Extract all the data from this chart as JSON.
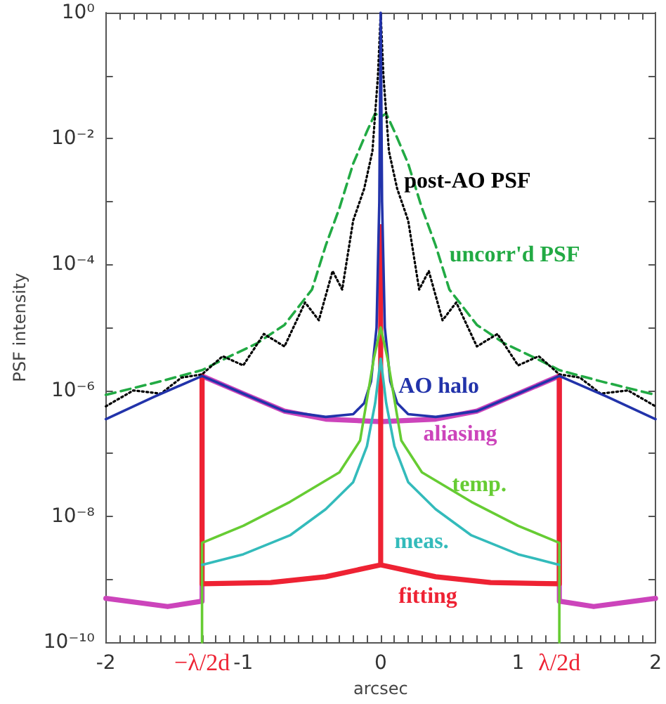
{
  "chart_data": {
    "type": "line",
    "xlabel": "arcsec",
    "ylabel": "PSF intensity",
    "log": "y",
    "grid": false,
    "legend": false,
    "marker": "none",
    "xlim": [
      -2,
      2
    ],
    "ylim": [
      1e-10,
      1
    ],
    "xticks": [
      -2,
      {
        "value": -1.9,
        "label": null
      },
      {
        "value": -1.8,
        "label": null
      },
      {
        "value": -1.7,
        "label": null
      },
      {
        "value": -1.6,
        "label": null
      },
      {
        "value": -1.5,
        "label": null
      },
      {
        "value": -1.4,
        "label": null
      },
      {
        "value": -1.3,
        "label": null
      },
      {
        "value": -1.2,
        "label": null
      },
      {
        "value": -1.1,
        "label": null
      },
      -1,
      {
        "value": -0.9,
        "label": null
      },
      {
        "value": -0.8,
        "label": null
      },
      {
        "value": -0.7,
        "label": null
      },
      {
        "value": -0.6,
        "label": null
      },
      {
        "value": -0.5,
        "label": null
      },
      {
        "value": -0.4,
        "label": null
      },
      {
        "value": -0.3,
        "label": null
      },
      {
        "value": -0.2,
        "label": null
      },
      {
        "value": -0.1,
        "label": null
      },
      0,
      {
        "value": 0.1,
        "label": null
      },
      {
        "value": 0.2,
        "label": null
      },
      {
        "value": 0.3,
        "label": null
      },
      {
        "value": 0.4,
        "label": null
      },
      {
        "value": 0.5,
        "label": null
      },
      {
        "value": 0.6,
        "label": null
      },
      {
        "value": 0.7,
        "label": null
      },
      {
        "value": 0.8,
        "label": null
      },
      {
        "value": 0.9,
        "label": null
      },
      1,
      {
        "value": 1.1,
        "label": null
      },
      {
        "value": 1.2,
        "label": null
      },
      {
        "value": 1.3,
        "label": null
      },
      {
        "value": 1.4,
        "label": null
      },
      {
        "value": 1.5,
        "label": null
      },
      {
        "value": 1.6,
        "label": null
      },
      {
        "value": 1.7,
        "label": null
      },
      {
        "value": 1.8,
        "label": null
      },
      {
        "value": 1.9,
        "label": null
      },
      2
    ],
    "yticks": [
      {
        "value": 1e-10,
        "label": "10⁻¹⁰"
      },
      {
        "value": 1e-09,
        "label": null
      },
      {
        "value": 1e-08,
        "label": "10⁻⁸"
      },
      {
        "value": 1e-07,
        "label": null
      },
      {
        "value": 1e-06,
        "label": "10⁻⁶"
      },
      {
        "value": 1e-05,
        "label": null
      },
      {
        "value": 0.0001,
        "label": "10⁻⁴"
      },
      {
        "value": 0.001,
        "label": null
      },
      {
        "value": 0.01,
        "label": "10⁻²"
      },
      {
        "value": 0.1,
        "label": null
      },
      {
        "value": 1,
        "label": "10⁰"
      }
    ],
    "series": [
      {
        "name": "uncorr'd PSF",
        "color": "#22aa44",
        "line_style": "dashed",
        "x": [
          -2,
          -1.6,
          -1.3,
          -1.16,
          -0.9,
          -0.7,
          -0.5,
          -0.4,
          -0.3,
          -0.2,
          -0.1,
          -0.04,
          0,
          0.04,
          0.1,
          0.2,
          0.3,
          0.4,
          0.5,
          0.7,
          0.9,
          1.16,
          1.3,
          1.6,
          2
        ],
        "values": [
          8.5e-07,
          1.4e-06,
          2.1e-06,
          3e-06,
          5.6e-06,
          1.1e-05,
          4e-05,
          0.0002,
          0.00079,
          0.004,
          0.013,
          0.025,
          0.022,
          0.025,
          0.013,
          0.004,
          0.00079,
          0.0002,
          4e-05,
          1.1e-05,
          5.6e-06,
          3e-06,
          2.1e-06,
          1.4e-06,
          8.5e-07
        ]
      },
      {
        "name": "post-AO PSF",
        "color": "#000000",
        "line_style": "dotted",
        "x": [
          -2,
          -1.8,
          -1.6,
          -1.45,
          -1.3,
          -1.15,
          -1,
          -0.85,
          -0.7,
          -0.55,
          -0.45,
          -0.35,
          -0.28,
          -0.2,
          -0.12,
          -0.06,
          -0.02,
          0,
          0.02,
          0.06,
          0.12,
          0.2,
          0.28,
          0.35,
          0.45,
          0.55,
          0.7,
          0.85,
          1,
          1.15,
          1.3,
          1.45,
          1.6,
          1.8,
          2
        ],
        "values": [
          5.6e-07,
          1e-06,
          8.9e-07,
          1.6e-06,
          1.8e-06,
          3.5e-06,
          2.5e-06,
          7.9e-06,
          5e-06,
          2.5e-05,
          1.3e-05,
          7.9e-05,
          4e-05,
          0.0005,
          0.0016,
          0.0063,
          0.1,
          1,
          0.1,
          0.0063,
          0.0016,
          0.0005,
          4e-05,
          7.9e-05,
          1.3e-05,
          2.5e-05,
          5e-06,
          7.9e-06,
          2.5e-06,
          3.5e-06,
          1.8e-06,
          1.6e-06,
          8.9e-07,
          1e-06,
          5.6e-07
        ]
      },
      {
        "name": "AO halo",
        "color": "#2233aa",
        "line_style": "solid",
        "x": [
          -2,
          -1.65,
          -1.3,
          -1,
          -0.7,
          -0.4,
          -0.2,
          -0.12,
          -0.07,
          -0.03,
          -0.01,
          0,
          0.01,
          0.03,
          0.07,
          0.12,
          0.2,
          0.4,
          0.7,
          1,
          1.3,
          1.65,
          2
        ],
        "values": [
          3.5e-07,
          7.9e-07,
          1.7e-06,
          8.9e-07,
          4.7e-07,
          3.8e-07,
          4.2e-07,
          6.3e-07,
          1.4e-06,
          1e-05,
          0.001,
          1,
          0.001,
          1e-05,
          1.4e-06,
          6.3e-07,
          4.2e-07,
          3.8e-07,
          4.7e-07,
          8.9e-07,
          1.7e-06,
          7.9e-07,
          3.5e-07
        ]
      },
      {
        "name": "aliasing",
        "color": "#cc44bb",
        "line_style": "solid",
        "x": [
          -2,
          -1.55,
          -1.3,
          -1.3,
          -1,
          -0.7,
          -0.4,
          0,
          0.4,
          0.7,
          1,
          1.3,
          1.3,
          1.55,
          2
        ],
        "values": [
          5e-10,
          3.7e-10,
          4.5e-10,
          1.7e-06,
          8.9e-07,
          4.7e-07,
          3.5e-07,
          3.2e-07,
          3.5e-07,
          4.7e-07,
          8.9e-07,
          1.7e-06,
          4.5e-10,
          3.7e-10,
          5e-10
        ]
      },
      {
        "name": "temp.",
        "color": "#66cc33",
        "line_style": "solid",
        "x": [
          -1.3,
          -1.3,
          -1,
          -0.66,
          -0.3,
          -0.15,
          -0.05,
          0,
          0.05,
          0.15,
          0.3,
          0.66,
          1,
          1.3,
          1.3
        ],
        "values": [
          1e-10,
          3.8e-09,
          7.1e-09,
          1.7e-08,
          5e-08,
          1.6e-07,
          3.2e-06,
          1e-05,
          3.2e-06,
          1.6e-07,
          5e-08,
          1.7e-08,
          7.1e-09,
          3.8e-09,
          1e-10
        ]
      },
      {
        "name": "meas.",
        "color": "#33bbbb",
        "line_style": "solid",
        "x": [
          -1.3,
          -1,
          -0.66,
          -0.4,
          -0.2,
          -0.1,
          -0.04,
          0,
          0.04,
          0.1,
          0.2,
          0.4,
          0.66,
          1,
          1.3
        ],
        "values": [
          1.7e-09,
          2.5e-09,
          5e-09,
          1.3e-08,
          3.5e-08,
          1.3e-07,
          6.3e-07,
          3.2e-06,
          6.3e-07,
          1.3e-07,
          3.5e-08,
          1.3e-08,
          5e-09,
          2.5e-09,
          1.7e-09
        ]
      },
      {
        "name": "fitting",
        "color": "#ee2233",
        "line_style": "solid",
        "x": [
          -1.3,
          -1.3,
          -0.8,
          -0.4,
          0,
          0,
          0,
          0.4,
          0.8,
          1.3,
          1.3
        ],
        "values": [
          1.7e-06,
          8.5e-10,
          8.9e-10,
          1.1e-09,
          1.7e-09,
          0.0004,
          1.7e-09,
          1.1e-09,
          8.9e-10,
          8.5e-10,
          1.7e-06
        ]
      }
    ],
    "annotations": [
      {
        "text": "−λ/2d",
        "x": -1.3,
        "y": 1e-10
      },
      {
        "text": "λ/2d",
        "x": 1.3,
        "y": 1e-10
      }
    ]
  }
}
